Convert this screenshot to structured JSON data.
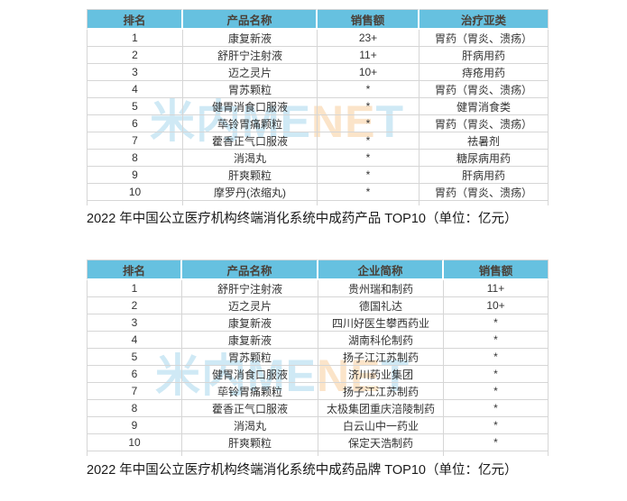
{
  "colors": {
    "header_bg": "#66c1e0",
    "header_text": "#4a4038",
    "body_text": "#333333",
    "border": "#d6d6d6",
    "caption_text": "#1a1a1a",
    "watermark_blue": "#cfe9f5",
    "watermark_orange": "#fbe4c9"
  },
  "watermark": {
    "letters": [
      {
        "ch": "米",
        "tone": "blue"
      },
      {
        "ch": "内",
        "tone": "blue"
      },
      {
        "ch": "M",
        "tone": "blue"
      },
      {
        "ch": "E",
        "tone": "blue"
      },
      {
        "ch": "N",
        "tone": "orange"
      },
      {
        "ch": "E",
        "tone": "orange"
      },
      {
        "ch": "T",
        "tone": "blue"
      }
    ]
  },
  "table1": {
    "caption": "2022 年中国公立医疗机构终端消化系统中成药产品 TOP10（单位：亿元）",
    "columns": [
      "排名",
      "产品名称",
      "销售额",
      "治疗亚类"
    ],
    "rows": [
      [
        "1",
        "康复新液",
        "23+",
        "胃药（胃炎、溃疡）"
      ],
      [
        "2",
        "舒肝宁注射液",
        "11+",
        "肝病用药"
      ],
      [
        "3",
        "迈之灵片",
        "10+",
        "痔疮用药"
      ],
      [
        "4",
        "胃苏颗粒",
        "*",
        "胃药（胃炎、溃疡）"
      ],
      [
        "5",
        "健胃消食口服液",
        "*",
        "健胃消食类"
      ],
      [
        "6",
        "荜铃胃痛颗粒",
        "*",
        "胃药（胃炎、溃疡）"
      ],
      [
        "7",
        "藿香正气口服液",
        "*",
        "祛暑剂"
      ],
      [
        "8",
        "消渴丸",
        "*",
        "糖尿病用药"
      ],
      [
        "9",
        "肝爽颗粒",
        "*",
        "肝病用药"
      ],
      [
        "10",
        "摩罗丹(浓缩丸)",
        "*",
        "胃药（胃炎、溃疡）"
      ]
    ]
  },
  "table2": {
    "caption": "2022 年中国公立医疗机构终端消化系统中成药品牌 TOP10（单位：亿元）",
    "columns": [
      "排名",
      "产品名称",
      "企业简称",
      "销售额"
    ],
    "rows": [
      [
        "1",
        "舒肝宁注射液",
        "贵州瑞和制药",
        "11+"
      ],
      [
        "2",
        "迈之灵片",
        "德国礼达",
        "10+"
      ],
      [
        "3",
        "康复新液",
        "四川好医生攀西药业",
        "*"
      ],
      [
        "4",
        "康复新液",
        "湖南科伦制药",
        "*"
      ],
      [
        "5",
        "胃苏颗粒",
        "扬子江江苏制药",
        "*"
      ],
      [
        "6",
        "健胃消食口服液",
        "济川药业集团",
        "*"
      ],
      [
        "7",
        "荜铃胃痛颗粒",
        "扬子江江苏制药",
        "*"
      ],
      [
        "8",
        "藿香正气口服液",
        "太极集团重庆涪陵制药",
        "*"
      ],
      [
        "9",
        "消渴丸",
        "白云山中一药业",
        "*"
      ],
      [
        "10",
        "肝爽颗粒",
        "保定天浩制药",
        "*"
      ]
    ]
  }
}
